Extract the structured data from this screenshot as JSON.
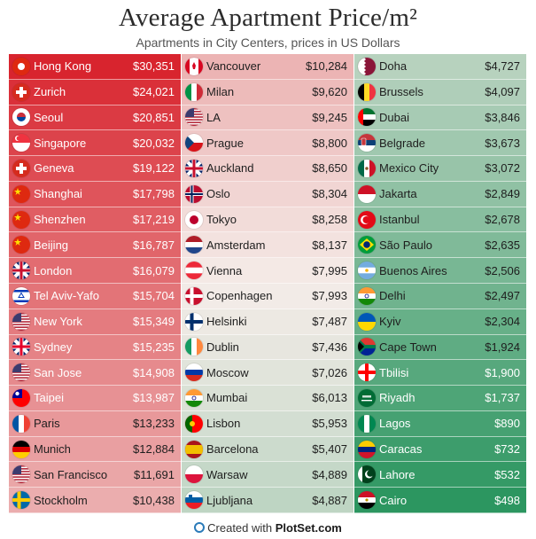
{
  "header": {
    "title": "Average Apartment Price/m²",
    "subtitle": "Apartments in City Centers, prices in US Dollars"
  },
  "footer": {
    "prefix": "Created with ",
    "brand": "PlotSet.com"
  },
  "chart_data": {
    "type": "table",
    "title": "Average Apartment Price/m²",
    "subtitle": "Apartments in City Centers, prices in US Dollars",
    "unit": "US Dollars per m²",
    "columns": 3,
    "rows": [
      {
        "city": "Hong Kong",
        "price": 30351,
        "price_label": "$30,351",
        "flag": "hong-kong-flag-icon",
        "flag_colors": [
          "#de2910",
          "#ffffff"
        ]
      },
      {
        "city": "Zurich",
        "price": 24021,
        "price_label": "$24,021",
        "flag": "swiss-flag-icon",
        "flag_colors": [
          "#d52b1e",
          "#ffffff"
        ]
      },
      {
        "city": "Seoul",
        "price": 20851,
        "price_label": "$20,851",
        "flag": "south-korea-flag-icon",
        "flag_colors": [
          "#ffffff",
          "#cd2e3a",
          "#0047a0"
        ]
      },
      {
        "city": "Singapore",
        "price": 20032,
        "price_label": "$20,032",
        "flag": "singapore-flag-icon",
        "flag_colors": [
          "#ef3340",
          "#ffffff"
        ]
      },
      {
        "city": "Geneva",
        "price": 19122,
        "price_label": "$19,122",
        "flag": "swiss-flag-icon",
        "flag_colors": [
          "#d52b1e",
          "#ffffff"
        ]
      },
      {
        "city": "Shanghai",
        "price": 17798,
        "price_label": "$17,798",
        "flag": "china-flag-icon",
        "flag_colors": [
          "#de2910",
          "#ffde00"
        ]
      },
      {
        "city": "Shenzhen",
        "price": 17219,
        "price_label": "$17,219",
        "flag": "china-flag-icon",
        "flag_colors": [
          "#de2910",
          "#ffde00"
        ]
      },
      {
        "city": "Beijing",
        "price": 16787,
        "price_label": "$16,787",
        "flag": "china-flag-icon",
        "flag_colors": [
          "#de2910",
          "#ffde00"
        ]
      },
      {
        "city": "London",
        "price": 16079,
        "price_label": "$16,079",
        "flag": "uk-flag-icon",
        "flag_colors": [
          "#012169",
          "#ffffff",
          "#c8102e"
        ]
      },
      {
        "city": "Tel Aviv-Yafo",
        "price": 15704,
        "price_label": "$15,704",
        "flag": "israel-flag-icon",
        "flag_colors": [
          "#ffffff",
          "#0038b8"
        ]
      },
      {
        "city": "New York",
        "price": 15349,
        "price_label": "$15,349",
        "flag": "usa-flag-icon",
        "flag_colors": [
          "#b22234",
          "#ffffff",
          "#3c3b6e"
        ]
      },
      {
        "city": "Sydney",
        "price": 15235,
        "price_label": "$15,235",
        "flag": "australia-flag-icon",
        "flag_colors": [
          "#012169",
          "#ffffff",
          "#e4002b"
        ]
      },
      {
        "city": "San Jose",
        "price": 14908,
        "price_label": "$14,908",
        "flag": "usa-flag-icon",
        "flag_colors": [
          "#b22234",
          "#ffffff",
          "#3c3b6e"
        ]
      },
      {
        "city": "Taipei",
        "price": 13987,
        "price_label": "$13,987",
        "flag": "taiwan-flag-icon",
        "flag_colors": [
          "#fe0000",
          "#000095",
          "#ffffff"
        ]
      },
      {
        "city": "Paris",
        "price": 13233,
        "price_label": "$13,233",
        "flag": "france-flag-icon",
        "flag_colors": [
          "#0055a4",
          "#ffffff",
          "#ef4135"
        ]
      },
      {
        "city": "Munich",
        "price": 12884,
        "price_label": "$12,884",
        "flag": "germany-flag-icon",
        "flag_colors": [
          "#000000",
          "#dd0000",
          "#ffce00"
        ]
      },
      {
        "city": "San Francisco",
        "price": 11691,
        "price_label": "$11,691",
        "flag": "usa-flag-icon",
        "flag_colors": [
          "#b22234",
          "#ffffff",
          "#3c3b6e"
        ]
      },
      {
        "city": "Stockholm",
        "price": 10438,
        "price_label": "$10,438",
        "flag": "sweden-flag-icon",
        "flag_colors": [
          "#006aa7",
          "#fecc00"
        ]
      },
      {
        "city": "Vancouver",
        "price": 10284,
        "price_label": "$10,284",
        "flag": "canada-flag-icon",
        "flag_colors": [
          "#d80621",
          "#ffffff"
        ]
      },
      {
        "city": "Milan",
        "price": 9620,
        "price_label": "$9,620",
        "flag": "italy-flag-icon",
        "flag_colors": [
          "#009246",
          "#ffffff",
          "#ce2b37"
        ]
      },
      {
        "city": "LA",
        "price": 9245,
        "price_label": "$9,245",
        "flag": "usa-flag-icon",
        "flag_colors": [
          "#b22234",
          "#ffffff",
          "#3c3b6e"
        ]
      },
      {
        "city": "Prague",
        "price": 8800,
        "price_label": "$8,800",
        "flag": "czech-flag-icon",
        "flag_colors": [
          "#ffffff",
          "#d7141a",
          "#11457e"
        ]
      },
      {
        "city": "Auckland",
        "price": 8650,
        "price_label": "$8,650",
        "flag": "new-zealand-flag-icon",
        "flag_colors": [
          "#012169",
          "#ffffff",
          "#c8102e"
        ]
      },
      {
        "city": "Oslo",
        "price": 8304,
        "price_label": "$8,304",
        "flag": "norway-flag-icon",
        "flag_colors": [
          "#ba0c2f",
          "#ffffff",
          "#00205b"
        ]
      },
      {
        "city": "Tokyo",
        "price": 8258,
        "price_label": "$8,258",
        "flag": "japan-flag-icon",
        "flag_colors": [
          "#ffffff",
          "#bc002d"
        ]
      },
      {
        "city": "Amsterdam",
        "price": 8137,
        "price_label": "$8,137",
        "flag": "netherlands-flag-icon",
        "flag_colors": [
          "#ae1c28",
          "#ffffff",
          "#21468b"
        ]
      },
      {
        "city": "Vienna",
        "price": 7995,
        "price_label": "$7,995",
        "flag": "austria-flag-icon",
        "flag_colors": [
          "#ed2939",
          "#ffffff"
        ]
      },
      {
        "city": "Copenhagen",
        "price": 7993,
        "price_label": "$7,993",
        "flag": "denmark-flag-icon",
        "flag_colors": [
          "#c8102e",
          "#ffffff"
        ]
      },
      {
        "city": "Helsinki",
        "price": 7487,
        "price_label": "$7,487",
        "flag": "finland-flag-icon",
        "flag_colors": [
          "#ffffff",
          "#002f6c"
        ]
      },
      {
        "city": "Dublin",
        "price": 7436,
        "price_label": "$7,436",
        "flag": "ireland-flag-icon",
        "flag_colors": [
          "#169b62",
          "#ffffff",
          "#ff883e"
        ]
      },
      {
        "city": "Moscow",
        "price": 7026,
        "price_label": "$7,026",
        "flag": "russia-flag-icon",
        "flag_colors": [
          "#ffffff",
          "#0039a6",
          "#d52b1e"
        ]
      },
      {
        "city": "Mumbai",
        "price": 6013,
        "price_label": "$6,013",
        "flag": "india-flag-icon",
        "flag_colors": [
          "#ff9933",
          "#ffffff",
          "#138808"
        ]
      },
      {
        "city": "Lisbon",
        "price": 5953,
        "price_label": "$5,953",
        "flag": "portugal-flag-icon",
        "flag_colors": [
          "#006600",
          "#ff0000",
          "#ffcc00"
        ]
      },
      {
        "city": "Barcelona",
        "price": 5407,
        "price_label": "$5,407",
        "flag": "spain-flag-icon",
        "flag_colors": [
          "#aa151b",
          "#f1bf00"
        ]
      },
      {
        "city": "Warsaw",
        "price": 4889,
        "price_label": "$4,889",
        "flag": "poland-flag-icon",
        "flag_colors": [
          "#ffffff",
          "#dc143c"
        ]
      },
      {
        "city": "Ljubljana",
        "price": 4887,
        "price_label": "$4,887",
        "flag": "slovenia-flag-icon",
        "flag_colors": [
          "#ffffff",
          "#005da4",
          "#ed1c24"
        ]
      },
      {
        "city": "Doha",
        "price": 4727,
        "price_label": "$4,727",
        "flag": "qatar-flag-icon",
        "flag_colors": [
          "#8a1538",
          "#ffffff"
        ]
      },
      {
        "city": "Brussels",
        "price": 4097,
        "price_label": "$4,097",
        "flag": "belgium-flag-icon",
        "flag_colors": [
          "#000000",
          "#fdda24",
          "#ef3340"
        ]
      },
      {
        "city": "Dubai",
        "price": 3846,
        "price_label": "$3,846",
        "flag": "uae-flag-icon",
        "flag_colors": [
          "#ff0000",
          "#00732f",
          "#ffffff",
          "#000000"
        ]
      },
      {
        "city": "Belgrade",
        "price": 3673,
        "price_label": "$3,673",
        "flag": "serbia-flag-icon",
        "flag_colors": [
          "#c6363c",
          "#0c4076",
          "#ffffff"
        ]
      },
      {
        "city": "Mexico City",
        "price": 3072,
        "price_label": "$3,072",
        "flag": "mexico-flag-icon",
        "flag_colors": [
          "#006847",
          "#ffffff",
          "#ce1126"
        ]
      },
      {
        "city": "Jakarta",
        "price": 2849,
        "price_label": "$2,849",
        "flag": "indonesia-flag-icon",
        "flag_colors": [
          "#ce1126",
          "#ffffff"
        ]
      },
      {
        "city": "Istanbul",
        "price": 2678,
        "price_label": "$2,678",
        "flag": "turkey-flag-icon",
        "flag_colors": [
          "#e30a17",
          "#ffffff"
        ]
      },
      {
        "city": "São Paulo",
        "price": 2635,
        "price_label": "$2,635",
        "flag": "brazil-flag-icon",
        "flag_colors": [
          "#009c3b",
          "#ffdf00",
          "#002776"
        ]
      },
      {
        "city": "Buenos Aires",
        "price": 2506,
        "price_label": "$2,506",
        "flag": "argentina-flag-icon",
        "flag_colors": [
          "#74acdf",
          "#ffffff"
        ]
      },
      {
        "city": "Delhi",
        "price": 2497,
        "price_label": "$2,497",
        "flag": "india-flag-icon",
        "flag_colors": [
          "#ff9933",
          "#ffffff",
          "#138808"
        ]
      },
      {
        "city": "Kyiv",
        "price": 2304,
        "price_label": "$2,304",
        "flag": "ukraine-flag-icon",
        "flag_colors": [
          "#0057b7",
          "#ffd700"
        ]
      },
      {
        "city": "Cape Town",
        "price": 1924,
        "price_label": "$1,924",
        "flag": "south-africa-flag-icon",
        "flag_colors": [
          "#007a4d",
          "#ffb612",
          "#de3831",
          "#002395",
          "#000000"
        ]
      },
      {
        "city": "Tbilisi",
        "price": 1900,
        "price_label": "$1,900",
        "flag": "georgia-flag-icon",
        "flag_colors": [
          "#ffffff",
          "#ff0000"
        ]
      },
      {
        "city": "Riyadh",
        "price": 1737,
        "price_label": "$1,737",
        "flag": "saudi-arabia-flag-icon",
        "flag_colors": [
          "#006c35",
          "#ffffff"
        ]
      },
      {
        "city": "Lagos",
        "price": 890,
        "price_label": "$890",
        "flag": "nigeria-flag-icon",
        "flag_colors": [
          "#008751",
          "#ffffff"
        ]
      },
      {
        "city": "Caracas",
        "price": 732,
        "price_label": "$732",
        "flag": "venezuela-flag-icon",
        "flag_colors": [
          "#ffcc00",
          "#00247d",
          "#cf142b"
        ]
      },
      {
        "city": "Lahore",
        "price": 532,
        "price_label": "$532",
        "flag": "pakistan-flag-icon",
        "flag_colors": [
          "#01411c",
          "#ffffff"
        ]
      },
      {
        "city": "Cairo",
        "price": 498,
        "price_label": "$498",
        "flag": "egypt-flag-icon",
        "flag_colors": [
          "#ce1126",
          "#ffffff",
          "#000000"
        ]
      }
    ]
  }
}
